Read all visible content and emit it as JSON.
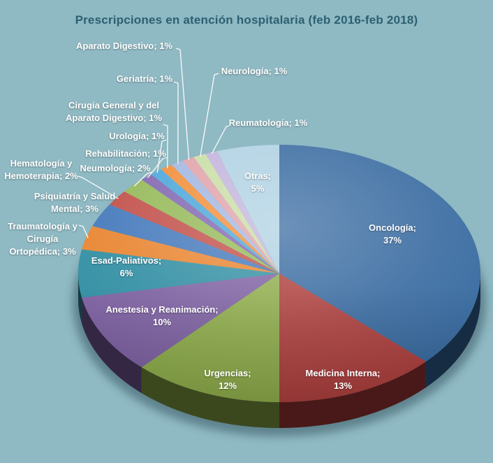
{
  "title": {
    "text": "Prescripciones  en atención hospitalaria  (feb 2016-feb 2018)",
    "color": "#2C6072"
  },
  "colors": {
    "background": "#8FB9C3",
    "label_text": "#FFFFFF",
    "leader_line": "#F2F8FA"
  },
  "chart_data": {
    "type": "pie",
    "title": "Prescripciones  en atención hospitalaria  (feb 2016-feb 2018)",
    "unit": "%",
    "effect": "3d",
    "start_angle_deg": 0,
    "direction": "clockwise",
    "legend": "none",
    "slices": [
      {
        "name": "Oncología",
        "value": 37,
        "color": "#35689F",
        "label_lines": [
          "Oncología;",
          "37%"
        ],
        "label_position": "inside"
      },
      {
        "name": "Medicina Interna",
        "value": 13,
        "color": "#AC3C3A",
        "label_lines": [
          "Medicina Interna;",
          "13%"
        ],
        "label_position": "inside"
      },
      {
        "name": "Urgencias",
        "value": 12,
        "color": "#8CAB47",
        "label_lines": [
          "Urgencias;",
          "12%"
        ],
        "label_position": "inside"
      },
      {
        "name": "Anestesia y Reanimación",
        "value": 10,
        "color": "#7B5EA0",
        "label_lines": [
          "Anestesia y Reanimación;",
          "10%"
        ],
        "label_position": "inside"
      },
      {
        "name": "Esad-Paliativos",
        "value": 6,
        "color": "#2D8CA1",
        "label_lines": [
          "Esad-Paliativos;",
          "6%"
        ],
        "label_position": "inside"
      },
      {
        "name": "Traumatología y Cirugía Ortopédica",
        "value": 3,
        "color": "#E8822C",
        "label_lines": [
          "Traumatología y",
          "Cirugía",
          "Ortopédica; 3%"
        ],
        "label_position": "outside"
      },
      {
        "name": "Psiquiatría y Salud Mental",
        "value": 3,
        "color": "#4076BA",
        "label_lines": [
          "Psiquiatría y Salud",
          "Mental; 3%"
        ],
        "label_position": "outside"
      },
      {
        "name": "Hematología y Hemoterapia",
        "value": 2,
        "color": "#C04B45",
        "label_lines": [
          "Hematología y",
          "Hemoterapia; 2%"
        ],
        "label_position": "outside"
      },
      {
        "name": "Neumología",
        "value": 2,
        "color": "#92B754",
        "label_lines": [
          "Neumología; 2%"
        ],
        "label_position": "outside"
      },
      {
        "name": "Rehabilitación",
        "value": 1,
        "color": "#7E63AE",
        "label_lines": [
          "Rehabilitación; 1%"
        ],
        "label_position": "outside"
      },
      {
        "name": "Urología",
        "value": 1,
        "color": "#47A4D9",
        "label_lines": [
          "Urología; 1%"
        ],
        "label_position": "outside"
      },
      {
        "name": "Cirugía General y del Aparato Digestivo",
        "value": 1,
        "color": "#F28B33",
        "label_lines": [
          "Cirugía General y del",
          "Aparato Digestivo; 1%"
        ],
        "label_position": "outside"
      },
      {
        "name": "Geriatría",
        "value": 1,
        "color": "#9FB5E0",
        "label_lines": [
          "Geriatría; 1%"
        ],
        "label_position": "outside"
      },
      {
        "name": "Aparato Digestivo",
        "value": 1,
        "color": "#DFA0A8",
        "label_lines": [
          "Aparato Digestivo; 1%"
        ],
        "label_position": "outside"
      },
      {
        "name": "Neurología",
        "value": 1,
        "color": "#C8DCA4",
        "label_lines": [
          "Neurología; 1%"
        ],
        "label_position": "outside"
      },
      {
        "name": "Reumatología",
        "value": 1,
        "color": "#C1B2DB",
        "label_lines": [
          "Reumatología; 1%"
        ],
        "label_position": "outside"
      },
      {
        "name": "Otras",
        "value": 5,
        "color": "#ADD0E2",
        "label_lines": [
          "Otras;",
          "5%"
        ],
        "label_position": "inside"
      }
    ]
  }
}
